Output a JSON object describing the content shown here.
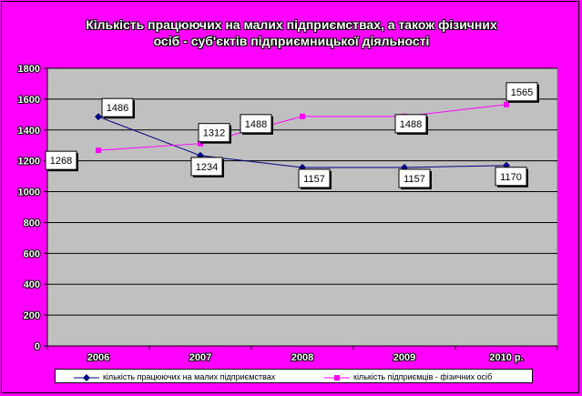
{
  "chart_data": {
    "type": "line",
    "title_lines": [
      "Кількість працюючих на малих підприємствах, а також фізичних",
      "осіб - суб'єктів підприємницької діяльності"
    ],
    "categories": [
      "2006",
      "2007",
      "2008",
      "2009",
      "2010 р."
    ],
    "y_ticks": [
      "0",
      "200",
      "400",
      "600",
      "800",
      "1000",
      "1200",
      "1400",
      "1600",
      "1800"
    ],
    "ylim": [
      0,
      1800
    ],
    "grid": "horizontal",
    "legend_position": "bottom",
    "series": [
      {
        "name": "кількість працюючих на малих підприємствах",
        "values": [
          1486,
          1234,
          1157,
          1157,
          1170
        ],
        "labels": [
          "1486",
          "1234",
          "1157",
          "1157",
          "1170"
        ],
        "color": "#000080",
        "marker": "diamond"
      },
      {
        "name": "кількість підприємців - фізичних осіб",
        "values": [
          1268,
          1312,
          1488,
          1488,
          1565
        ],
        "labels": [
          "1268",
          "1312",
          "1488",
          "1488",
          "1565"
        ],
        "color": "#ff00ff",
        "marker": "square"
      }
    ],
    "plot_background": "#c0c0c0"
  }
}
